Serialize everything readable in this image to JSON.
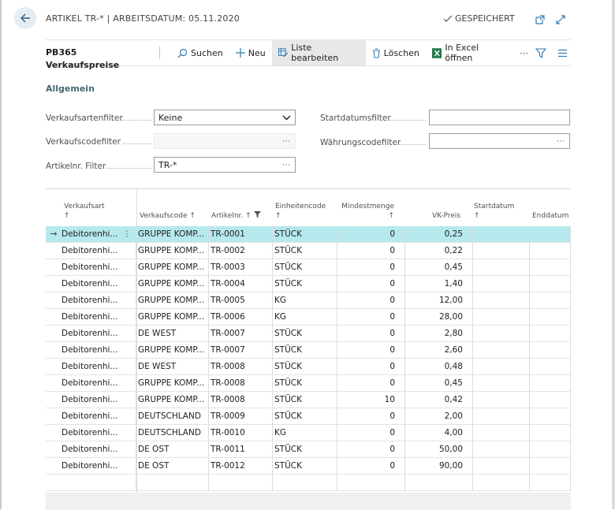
{
  "header": {
    "caption": "ARTIKEL TR-* | ARBEITSDATUM: 05.11.2020",
    "saved_label": "GESPEICHERT"
  },
  "actionbar": {
    "page_name": "PB365 Verkaufspreise",
    "search": "Suchen",
    "new": "Neu",
    "edit_list": "Liste bearbeiten",
    "delete": "Löschen",
    "excel": "In Excel öffnen"
  },
  "general": {
    "title": "Allgemein",
    "sales_type_filter": {
      "label": "Verkaufsartenfilter",
      "value": "Keine"
    },
    "sales_code_filter": {
      "label": "Verkaufscodefilter",
      "value": ""
    },
    "item_no_filter": {
      "label": "Artikelnr. Filter",
      "value": "TR-*"
    },
    "start_date_filter": {
      "label": "Startdatumsfilter",
      "value": ""
    },
    "currency_code_filter": {
      "label": "Währungscodefilter",
      "value": ""
    }
  },
  "grid": {
    "columns": [
      {
        "label": "Verkaufsart",
        "sort": "↑"
      },
      {
        "label": "Verkaufscode",
        "sort": "↑"
      },
      {
        "label": "Artikelnr.",
        "sort": "↑"
      },
      {
        "label": "Einheitencode",
        "sort": "↑"
      },
      {
        "label": "Mindestmenge",
        "sort": "↑"
      },
      {
        "label": "VK-Preis",
        "sort": ""
      },
      {
        "label": "Startdatum",
        "sort": "↑"
      },
      {
        "label": "Enddatum",
        "sort": ""
      }
    ],
    "selected_index": 0,
    "row_marker": "→",
    "row_menu": "⋮",
    "rows": [
      {
        "sales_type": "Debitorenhi...",
        "sales_code": "GRUPPE KOMP...",
        "item_no": "TR-0001",
        "unit": "STÜCK",
        "min_qty": "0",
        "price": "0,25",
        "start": "",
        "end": ""
      },
      {
        "sales_type": "Debitorenhi...",
        "sales_code": "GRUPPE KOMP...",
        "item_no": "TR-0002",
        "unit": "STÜCK",
        "min_qty": "0",
        "price": "0,22",
        "start": "",
        "end": ""
      },
      {
        "sales_type": "Debitorenhi...",
        "sales_code": "GRUPPE KOMP...",
        "item_no": "TR-0003",
        "unit": "STÜCK",
        "min_qty": "0",
        "price": "0,45",
        "start": "",
        "end": ""
      },
      {
        "sales_type": "Debitorenhi...",
        "sales_code": "GRUPPE KOMP...",
        "item_no": "TR-0004",
        "unit": "STÜCK",
        "min_qty": "0",
        "price": "1,40",
        "start": "",
        "end": ""
      },
      {
        "sales_type": "Debitorenhi...",
        "sales_code": "GRUPPE KOMP...",
        "item_no": "TR-0005",
        "unit": "KG",
        "min_qty": "0",
        "price": "12,00",
        "start": "",
        "end": ""
      },
      {
        "sales_type": "Debitorenhi...",
        "sales_code": "GRUPPE KOMP...",
        "item_no": "TR-0006",
        "unit": "KG",
        "min_qty": "0",
        "price": "28,00",
        "start": "",
        "end": ""
      },
      {
        "sales_type": "Debitorenhi...",
        "sales_code": "DE WEST",
        "item_no": "TR-0007",
        "unit": "STÜCK",
        "min_qty": "0",
        "price": "2,80",
        "start": "",
        "end": ""
      },
      {
        "sales_type": "Debitorenhi...",
        "sales_code": "GRUPPE KOMP...",
        "item_no": "TR-0007",
        "unit": "STÜCK",
        "min_qty": "0",
        "price": "2,60",
        "start": "",
        "end": ""
      },
      {
        "sales_type": "Debitorenhi...",
        "sales_code": "DE WEST",
        "item_no": "TR-0008",
        "unit": "STÜCK",
        "min_qty": "0",
        "price": "0,48",
        "start": "",
        "end": ""
      },
      {
        "sales_type": "Debitorenhi...",
        "sales_code": "GRUPPE KOMP...",
        "item_no": "TR-0008",
        "unit": "STÜCK",
        "min_qty": "0",
        "price": "0,45",
        "start": "",
        "end": ""
      },
      {
        "sales_type": "Debitorenhi...",
        "sales_code": "GRUPPE KOMP...",
        "item_no": "TR-0008",
        "unit": "STÜCK",
        "min_qty": "10",
        "price": "0,42",
        "start": "",
        "end": ""
      },
      {
        "sales_type": "Debitorenhi...",
        "sales_code": "DEUTSCHLAND",
        "item_no": "TR-0009",
        "unit": "STÜCK",
        "min_qty": "0",
        "price": "2,00",
        "start": "",
        "end": ""
      },
      {
        "sales_type": "Debitorenhi...",
        "sales_code": "DEUTSCHLAND",
        "item_no": "TR-0010",
        "unit": "KG",
        "min_qty": "0",
        "price": "4,00",
        "start": "",
        "end": ""
      },
      {
        "sales_type": "Debitorenhi...",
        "sales_code": "DE OST",
        "item_no": "TR-0011",
        "unit": "STÜCK",
        "min_qty": "0",
        "price": "50,00",
        "start": "",
        "end": ""
      },
      {
        "sales_type": "Debitorenhi...",
        "sales_code": "DE OST",
        "item_no": "TR-0012",
        "unit": "STÜCK",
        "min_qty": "0",
        "price": "90,00",
        "start": "",
        "end": ""
      },
      {
        "sales_type": "",
        "sales_code": "",
        "item_no": "",
        "unit": "",
        "min_qty": "",
        "price": "",
        "start": "",
        "end": ""
      }
    ]
  }
}
